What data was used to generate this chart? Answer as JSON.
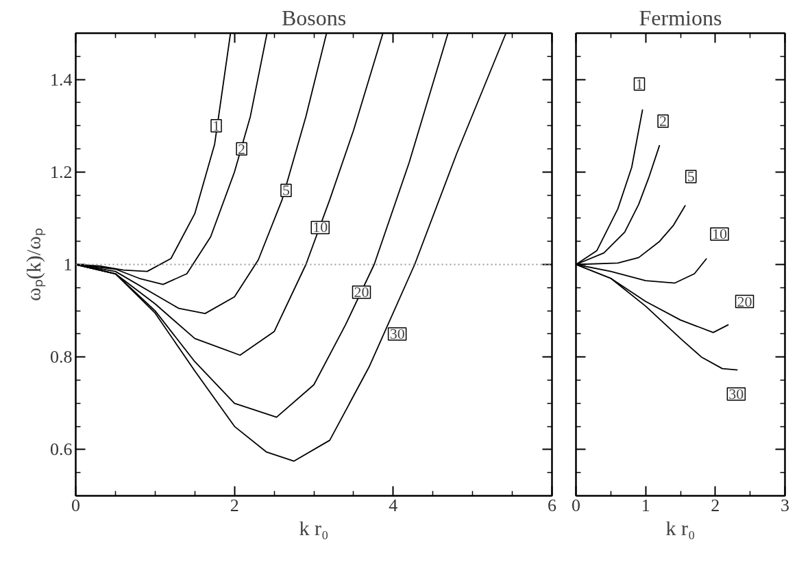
{
  "chart_data": [
    {
      "type": "line",
      "title": "Bosons",
      "xlabel": "k r₀",
      "ylabel": "ωₚ(k)/ωₚ",
      "xlim": [
        0,
        6
      ],
      "ylim": [
        0.5,
        1.5
      ],
      "xticks": [
        0,
        {
          "value": 0.5,
          "label": null
        },
        {
          "value": 1,
          "label": null
        },
        {
          "value": 1.5,
          "label": null
        },
        2,
        {
          "value": 2.5,
          "label": null
        },
        {
          "value": 3,
          "label": null
        },
        {
          "value": 3.5,
          "label": null
        },
        4,
        {
          "value": 4.5,
          "label": null
        },
        {
          "value": 5,
          "label": null
        },
        {
          "value": 5.5,
          "label": null
        },
        6
      ],
      "yticks": [
        {
          "value": 0.55,
          "label": null
        },
        0.6,
        {
          "value": 0.65,
          "label": null
        },
        {
          "value": 0.7,
          "label": null
        },
        {
          "value": 0.75,
          "label": null
        },
        0.8,
        {
          "value": 0.85,
          "label": null
        },
        {
          "value": 0.9,
          "label": null
        },
        {
          "value": 0.95,
          "label": null
        },
        1,
        {
          "value": 1.05,
          "label": null
        },
        {
          "value": 1.1,
          "label": null
        },
        {
          "value": 1.15,
          "label": null
        },
        1.2,
        {
          "value": 1.25,
          "label": null
        },
        {
          "value": 1.3,
          "label": null
        },
        {
          "value": 1.35,
          "label": null
        },
        1.4,
        {
          "value": 1.45,
          "label": null
        }
      ],
      "series": [
        {
          "color": "#000000",
          "x": [
            0,
            0.3,
            0.6,
            0.9,
            1.2,
            1.5,
            1.75,
            1.95
          ],
          "values": [
            1,
            0.997,
            0.988,
            0.985,
            1.013,
            1.11,
            1.26,
            1.5
          ]
        },
        {
          "color": "#000000",
          "x": [
            0,
            0.5,
            0.8,
            1.1,
            1.4,
            1.7,
            2.0,
            2.2,
            2.41
          ],
          "values": [
            1,
            0.99,
            0.97,
            0.957,
            0.98,
            1.06,
            1.2,
            1.32,
            1.5
          ]
        },
        {
          "color": "#000000",
          "x": [
            0,
            0.5,
            1.0,
            1.3,
            1.63,
            2.0,
            2.3,
            2.6,
            2.9,
            3.16
          ],
          "values": [
            1,
            0.985,
            0.935,
            0.905,
            0.894,
            0.93,
            1.01,
            1.14,
            1.32,
            1.5
          ]
        },
        {
          "color": "#000000",
          "x": [
            0,
            0.5,
            1.0,
            1.5,
            2.07,
            2.5,
            2.9,
            3.2,
            3.5,
            3.87
          ],
          "values": [
            1,
            0.98,
            0.915,
            0.84,
            0.804,
            0.855,
            1.0,
            1.14,
            1.29,
            1.5
          ]
        },
        {
          "color": "#000000",
          "x": [
            0,
            0.5,
            1.0,
            1.5,
            2.0,
            2.53,
            3.0,
            3.4,
            3.76,
            4.2,
            4.69
          ],
          "values": [
            1,
            0.98,
            0.9,
            0.79,
            0.7,
            0.67,
            0.74,
            0.87,
            1.0,
            1.22,
            1.5
          ]
        },
        {
          "color": "#000000",
          "x": [
            0,
            0.5,
            1.0,
            1.5,
            2.0,
            2.4,
            2.75,
            3.2,
            3.7,
            4.27,
            4.8,
            5.42
          ],
          "values": [
            1,
            0.98,
            0.895,
            0.77,
            0.65,
            0.595,
            0.575,
            0.62,
            0.78,
            1.0,
            1.24,
            1.5
          ]
        }
      ],
      "ref_lines": [
        {
          "axis": "y",
          "value": 1,
          "color": "#999999",
          "line_style": "dotted"
        }
      ],
      "annotations": [
        {
          "text": "1",
          "x": 1.77,
          "y": 1.3
        },
        {
          "text": "2",
          "x": 2.09,
          "y": 1.25
        },
        {
          "text": "5",
          "x": 2.65,
          "y": 1.16
        },
        {
          "text": "10",
          "x": 3.08,
          "y": 1.08
        },
        {
          "text": "20",
          "x": 3.6,
          "y": 0.94
        },
        {
          "text": "30",
          "x": 4.05,
          "y": 0.85
        }
      ]
    },
    {
      "type": "line",
      "title": "Fermions",
      "xlabel": "k r₀",
      "tick_labels": "x",
      "xlim": [
        0,
        3
      ],
      "ylim": [
        0.5,
        1.5
      ],
      "xticks": [
        0,
        {
          "value": 0.5,
          "label": null
        },
        1,
        {
          "value": 1.5,
          "label": null
        },
        2,
        {
          "value": 2.5,
          "label": null
        },
        3
      ],
      "yticks": [
        {
          "value": 0.55,
          "label": null
        },
        0.6,
        {
          "value": 0.65,
          "label": null
        },
        {
          "value": 0.7,
          "label": null
        },
        {
          "value": 0.75,
          "label": null
        },
        0.8,
        {
          "value": 0.85,
          "label": null
        },
        {
          "value": 0.9,
          "label": null
        },
        {
          "value": 0.95,
          "label": null
        },
        1,
        {
          "value": 1.05,
          "label": null
        },
        {
          "value": 1.1,
          "label": null
        },
        {
          "value": 1.15,
          "label": null
        },
        1.2,
        {
          "value": 1.25,
          "label": null
        },
        {
          "value": 1.3,
          "label": null
        },
        {
          "value": 1.35,
          "label": null
        },
        1.4,
        {
          "value": 1.45,
          "label": null
        }
      ],
      "series": [
        {
          "color": "#000000",
          "x": [
            0,
            0.3,
            0.6,
            0.8,
            0.956
          ],
          "values": [
            1,
            1.03,
            1.12,
            1.21,
            1.335
          ]
        },
        {
          "color": "#000000",
          "x": [
            0,
            0.4,
            0.7,
            0.9,
            1.05,
            1.2
          ],
          "values": [
            1,
            1.025,
            1.07,
            1.13,
            1.19,
            1.258
          ]
        },
        {
          "color": "#000000",
          "x": [
            0,
            0.6,
            0.9,
            1.2,
            1.4,
            1.57
          ],
          "values": [
            1,
            1.003,
            1.015,
            1.05,
            1.085,
            1.128
          ]
        },
        {
          "color": "#000000",
          "x": [
            0,
            0.5,
            1.0,
            1.42,
            1.7,
            1.875
          ],
          "values": [
            1,
            0.985,
            0.965,
            0.96,
            0.98,
            1.013
          ]
        },
        {
          "color": "#000000",
          "x": [
            0,
            0.5,
            1.0,
            1.5,
            1.97,
            2.19
          ],
          "values": [
            1,
            0.97,
            0.92,
            0.88,
            0.853,
            0.87
          ]
        },
        {
          "color": "#000000",
          "x": [
            0,
            0.5,
            1.0,
            1.5,
            1.8,
            2.1,
            2.32
          ],
          "values": [
            1,
            0.97,
            0.91,
            0.84,
            0.8,
            0.775,
            0.772
          ]
        }
      ],
      "annotations": [
        {
          "text": "1",
          "x": 0.91,
          "y": 1.39
        },
        {
          "text": "2",
          "x": 1.25,
          "y": 1.31
        },
        {
          "text": "5",
          "x": 1.65,
          "y": 1.19
        },
        {
          "text": "10",
          "x": 2.06,
          "y": 1.066
        },
        {
          "text": "20",
          "x": 2.42,
          "y": 0.92
        },
        {
          "text": "30",
          "x": 2.3,
          "y": 0.72
        }
      ]
    }
  ]
}
